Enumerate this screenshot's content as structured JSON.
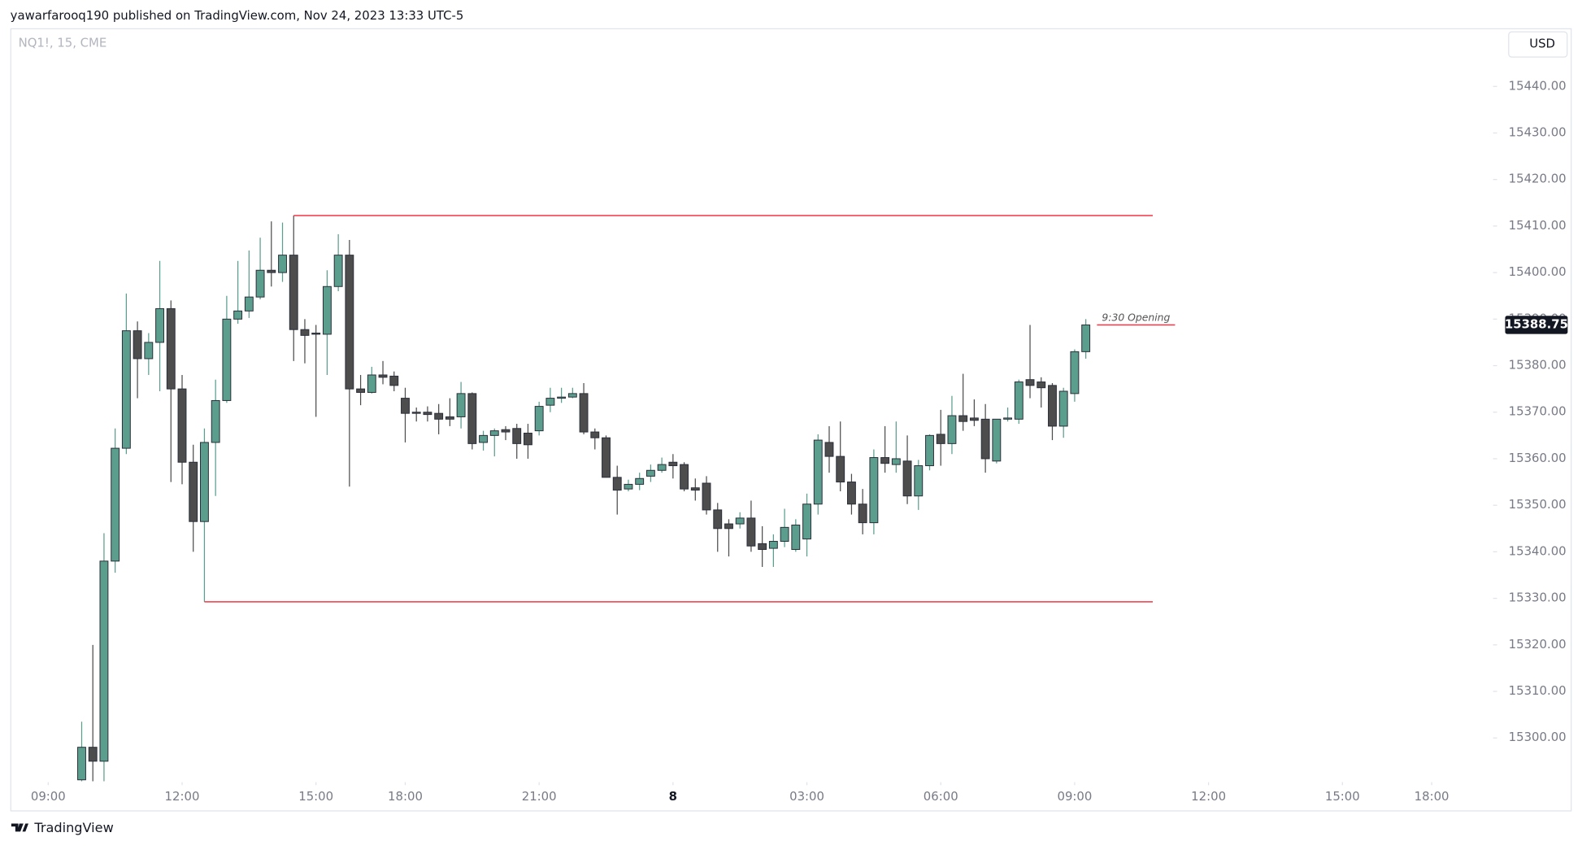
{
  "header": {
    "text": "yawarfarooq190 published on TradingView.com, Nov 24, 2023 13:33 UTC-5"
  },
  "footer": {
    "brand": "TradingView"
  },
  "chart_data": {
    "type": "candlestick",
    "symbol": "NQ1!, 15, CME",
    "currency": "USD",
    "up_color": "#5b9e8e",
    "down_color": "#4d4d4d",
    "ylim": [
      15290.5,
      15452.5
    ],
    "yticks": [
      {
        "value": 15300,
        "label": "15300.00"
      },
      {
        "value": 15310,
        "label": "15310.00"
      },
      {
        "value": 15320,
        "label": "15320.00"
      },
      {
        "value": 15330,
        "label": "15330.00"
      },
      {
        "value": 15340,
        "label": "15340.00"
      },
      {
        "value": 15350,
        "label": "15350.00"
      },
      {
        "value": 15360,
        "label": "15360.00"
      },
      {
        "value": 15370,
        "label": "15370.00"
      },
      {
        "value": 15380,
        "label": "15380.00"
      },
      {
        "value": 15390,
        "label": "15390.00"
      },
      {
        "value": 15400,
        "label": "15400.00"
      },
      {
        "value": 15410,
        "label": "15410.00"
      },
      {
        "value": 15420,
        "label": "15420.00"
      },
      {
        "value": 15430,
        "label": "15430.00"
      },
      {
        "value": 15440,
        "label": "15440.00"
      }
    ],
    "xlim": [
      -6.4,
      126.5
    ],
    "xticks": [
      {
        "value": -3,
        "label": "09:00"
      },
      {
        "value": 9,
        "label": "12:00"
      },
      {
        "value": 21,
        "label": "15:00"
      },
      {
        "value": 29,
        "label": "18:00"
      },
      {
        "value": 41,
        "label": "21:00"
      },
      {
        "value": 53,
        "label": "8"
      },
      {
        "value": 65,
        "label": "03:00"
      },
      {
        "value": 77,
        "label": "06:00"
      },
      {
        "value": 89,
        "label": "09:00"
      },
      {
        "value": 101,
        "label": "12:00"
      },
      {
        "value": 113,
        "label": "15:00"
      },
      {
        "value": 121,
        "label": "18:00"
      }
    ],
    "open": [
      15291,
      15298,
      15295,
      15338,
      15362.25,
      15387.5,
      15381.5,
      15385,
      15392.25,
      15375,
      15359.25,
      15346.5,
      15363.5,
      15372.5,
      15390,
      15391.75,
      15394.75,
      15400.5,
      15400,
      15403.75,
      15387.75,
      15387,
      15386.75,
      15397,
      15403.75,
      15375,
      15374.25,
      15378,
      15377.75,
      15373,
      15370,
      15370,
      15369.75,
      15369,
      15369,
      15374,
      15363.5,
      15365,
      15366.25,
      15366.5,
      15365.5,
      15366,
      15371.5,
      15373,
      15373.25,
      15374,
      15365.75,
      15364.5,
      15356,
      15353.5,
      15354.5,
      15356.25,
      15357.5,
      15359.25,
      15358.75,
      15353.75,
      15354.75,
      15349,
      15346,
      15346,
      15347.25,
      15341.75,
      15340.75,
      15342.25,
      15340.5,
      15342.75,
      15350.25,
      15363.5,
      15360.5,
      15355,
      15350.25,
      15346.25,
      15360.25,
      15358.75,
      15359.5,
      15352,
      15358.5,
      15365.25,
      15363.25,
      15369.25,
      15368.75,
      15368.5,
      15359.5,
      15368.5,
      15368.5,
      15377,
      15376.5,
      15375.75,
      15367,
      15374,
      15383
    ],
    "high": [
      15303.5,
      15320,
      15344,
      15366.5,
      15395.5,
      15389.5,
      15387,
      15402.5,
      15394,
      15378,
      15363,
      15366.5,
      15377,
      15395,
      15402.5,
      15404.75,
      15407.5,
      15411,
      15410.75,
      15412.25,
      15390,
      15388.75,
      15400.5,
      15408.25,
      15407,
      15378,
      15379.75,
      15381,
      15378.75,
      15375.25,
      15371,
      15371.25,
      15371.75,
      15373,
      15376.5,
      15374.25,
      15366,
      15366.5,
      15367,
      15367.5,
      15367.5,
      15372.25,
      15375.25,
      15375.25,
      15375.25,
      15376.25,
      15366.5,
      15365,
      15358.5,
      15355.5,
      15357,
      15358.75,
      15360.25,
      15361,
      15359.25,
      15355.75,
      15356.25,
      15350.5,
      15347,
      15348.5,
      15351,
      15345.5,
      15343.75,
      15349.25,
      15347,
      15352.5,
      15365.25,
      15367,
      15368,
      15356.75,
      15353.5,
      15362,
      15367,
      15368,
      15365,
      15359.75,
      15365.25,
      15370.5,
      15373.5,
      15378.25,
      15372.75,
      15371.75,
      15368.5,
      15371,
      15377,
      15388.75,
      15377.5,
      15376.25,
      15375.25,
      15383.5,
      15390
    ],
    "low": [
      15290.7,
      15290.7,
      15290.7,
      15335.5,
      15361,
      15373,
      15378,
      15374.5,
      15355,
      15354.5,
      15340,
      15329.25,
      15352,
      15372,
      15389,
      15390.25,
      15394.25,
      15397,
      15398,
      15381,
      15380.5,
      15369,
      15378,
      15396,
      15354,
      15371.5,
      15374,
      15376,
      15374.5,
      15363.5,
      15368,
      15368,
      15365.25,
      15367,
      15366.5,
      15362,
      15361.75,
      15360.5,
      15364,
      15360,
      15360,
      15365,
      15370,
      15372,
      15373,
      15365.25,
      15362,
      15356,
      15348,
      15353,
      15353.25,
      15355,
      15357,
      15355.75,
      15353,
      15351,
      15348,
      15340,
      15339,
      15345,
      15340,
      15336.75,
      15336.75,
      15341,
      15340,
      15339,
      15348,
      15357,
      15353,
      15348,
      15343.75,
      15343.75,
      15357,
      15357,
      15350.25,
      15349,
      15357.5,
      15358.5,
      15361,
      15366,
      15367,
      15357,
      15359,
      15368,
      15367.5,
      15373,
      15371,
      15364,
      15364.5,
      15372.25,
      15381.5
    ],
    "close": [
      15298,
      15295,
      15338,
      15362.25,
      15387.5,
      15381.5,
      15385,
      15392.25,
      15375,
      15359.25,
      15346.5,
      15363.5,
      15372.5,
      15390,
      15391.75,
      15394.75,
      15400.5,
      15400,
      15403.75,
      15387.75,
      15386.5,
      15386.75,
      15397,
      15403.75,
      15375,
      15374.25,
      15378,
      15377.5,
      15375.75,
      15369.75,
      15369.75,
      15369.5,
      15368.5,
      15368.5,
      15374,
      15363.25,
      15365,
      15366,
      15365.75,
      15363.25,
      15363,
      15371.25,
      15373,
      15373.25,
      15374,
      15365.75,
      15364.5,
      15356,
      15353.25,
      15354.5,
      15355.75,
      15357.5,
      15358.75,
      15358.5,
      15353.5,
      15353.25,
      15349,
      15345,
      15345,
      15347.25,
      15341.25,
      15340.5,
      15342.25,
      15345.25,
      15345.75,
      15350.25,
      15364,
      15360.5,
      15355,
      15350.25,
      15346.25,
      15360.25,
      15359,
      15360,
      15352,
      15358.5,
      15365,
      15363.25,
      15369.25,
      15368,
      15368.25,
      15360,
      15368.5,
      15368.75,
      15376.5,
      15375.75,
      15375.25,
      15367,
      15374.5,
      15383,
      15388.75
    ],
    "levels": [
      {
        "value": 15412.25,
        "from": 19,
        "to": 96,
        "color": "#f23645"
      },
      {
        "value": 15329.25,
        "from": 11,
        "to": 96,
        "color": "#f23645"
      },
      {
        "value": 15388.75,
        "from": 91,
        "to": 98,
        "color": "#f23645",
        "label": "9:30 Opening"
      }
    ],
    "last_price": {
      "value": 15388.75,
      "label": "15388.75"
    }
  }
}
